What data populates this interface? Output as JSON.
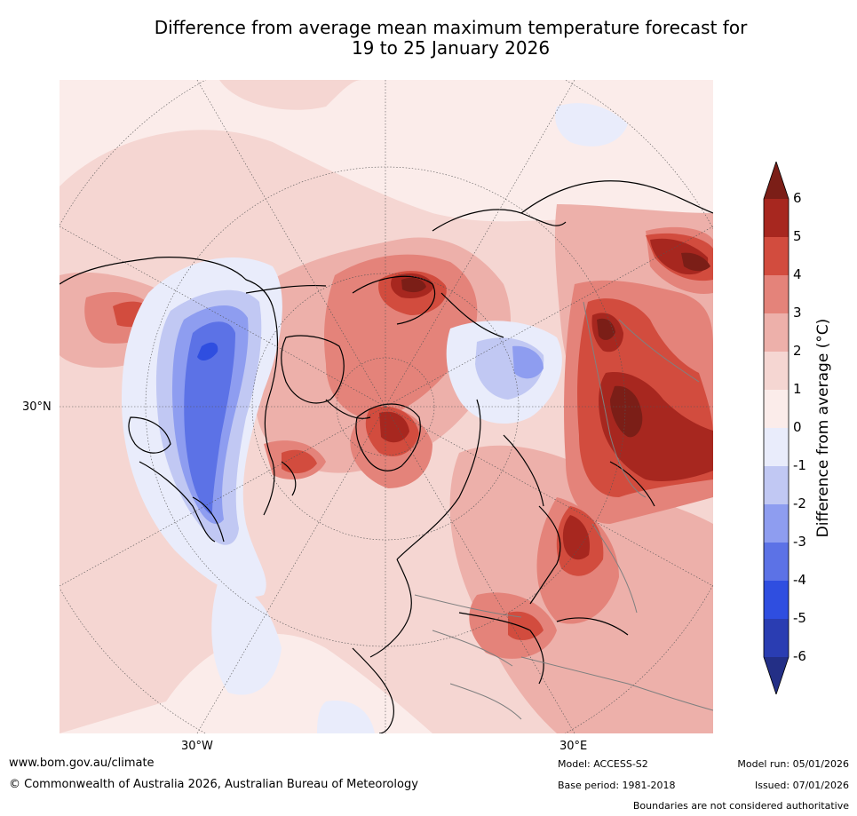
{
  "title_line1": "Difference from average mean maximum temperature forecast for",
  "title_line2": "19 to 25 January 2026",
  "map": {
    "lat_label": "30°N",
    "lon_labels": {
      "west": "30°W",
      "east": "30°E"
    }
  },
  "legend": {
    "title": "Difference from average (°C)",
    "ticks": [
      "6",
      "5",
      "4",
      "3",
      "2",
      "1",
      "0",
      "-1",
      "-2",
      "-3",
      "-4",
      "-5",
      "-6"
    ],
    "bins": [
      {
        "range": "> 6",
        "color": "#7b1e17"
      },
      {
        "range": "5 to 6",
        "color": "#a7271f"
      },
      {
        "range": "4 to 5",
        "color": "#d24c3e"
      },
      {
        "range": "3 to 4",
        "color": "#e4837a"
      },
      {
        "range": "2 to 3",
        "color": "#edb0aa"
      },
      {
        "range": "1 to 2",
        "color": "#f5d6d2"
      },
      {
        "range": "0 to 1",
        "color": "#fbecea"
      },
      {
        "range": "-1 to 0",
        "color": "#e9ecfb"
      },
      {
        "range": "-2 to -1",
        "color": "#c1c8f3"
      },
      {
        "range": "-3 to -2",
        "color": "#8e9df0"
      },
      {
        "range": "-4 to -3",
        "color": "#5c72e6"
      },
      {
        "range": "-5 to -4",
        "color": "#2f4ee0"
      },
      {
        "range": "-6 to -5",
        "color": "#2a3db2"
      },
      {
        "range": "< -6",
        "color": "#232f86"
      }
    ]
  },
  "footer": {
    "url": "www.bom.gov.au/climate",
    "copyright": "© Commonwealth of Australia 2026, Australian Bureau of Meteorology",
    "model": "Model: ACCESS-S2",
    "base_period": "Base period: 1981-2018",
    "model_run": "Model run: 05/01/2026",
    "issued": "Issued: 07/01/2026",
    "disclaimer": "Boundaries are not considered authoritative"
  },
  "colors": {
    "background_anomaly": "#fbecea",
    "land_outline": "#000000",
    "country_border": "#808080",
    "graticule": "#555555"
  }
}
